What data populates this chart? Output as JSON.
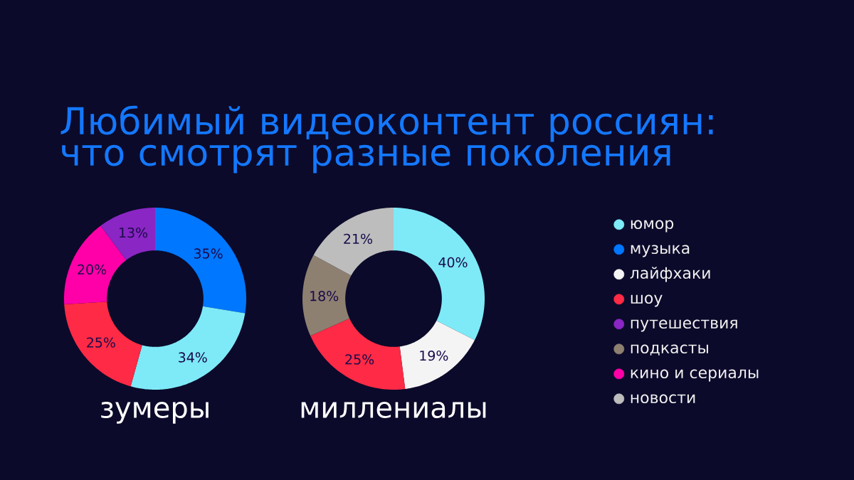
{
  "chart_data": [
    {
      "type": "other",
      "title": "Любимый видеоконтент россиян: что смотрят разные поколения"
    },
    {
      "type": "donut",
      "title": "зумеры",
      "categories": [
        null,
        null,
        null,
        null,
        null
      ],
      "values": [
        35,
        34,
        25,
        20,
        13
      ],
      "colors": [
        "#0077ff",
        "#7eeaf7",
        "#ff2a45",
        "#ff00a8",
        "#8a26c4"
      ],
      "value_labels": [
        "35%",
        "34%",
        "25%",
        "20%",
        "13%"
      ]
    },
    {
      "type": "donut",
      "title": "миллениалы",
      "categories": [
        "юмор",
        "музыка",
        "лайфхаки",
        "шоу",
        "путешествия",
        "подкасты",
        "кино и сериалы",
        "новости"
      ],
      "values": [
        40,
        null,
        19,
        25,
        null,
        18,
        null,
        21
      ],
      "colors": [
        "#7eeaf7",
        "#0077ff",
        "#f4f4f4",
        "#ff2a45",
        "#8a26c4",
        "#8e8070",
        "#ff00a8",
        "#bdbdbd"
      ],
      "value_labels": [
        "40%",
        null,
        "19%",
        "25%",
        null,
        "18%",
        null,
        "21%"
      ],
      "legend": "right"
    }
  ]
}
